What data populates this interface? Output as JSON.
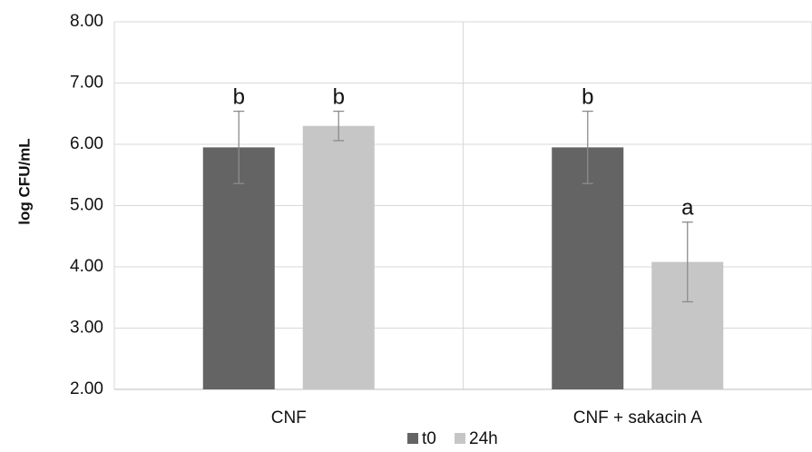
{
  "chart_data": {
    "type": "bar",
    "title": "",
    "xlabel": "",
    "ylabel": "log CFU/mL",
    "ylim": [
      2.0,
      8.0
    ],
    "yticks": [
      "2.00",
      "3.00",
      "4.00",
      "5.00",
      "6.00",
      "7.00",
      "8.00"
    ],
    "categories": [
      "CNF",
      "CNF + sakacin A"
    ],
    "series": [
      {
        "name": "t0",
        "color": "#646464",
        "values": [
          5.95,
          5.95
        ],
        "error": [
          0.59,
          0.59
        ],
        "labels": [
          "b",
          "b"
        ]
      },
      {
        "name": "24h",
        "color": "#c6c6c6",
        "values": [
          6.3,
          4.08
        ],
        "error": [
          0.24,
          0.65
        ],
        "labels": [
          "b",
          "a"
        ]
      }
    ],
    "grid": true,
    "legend_position": "bottom"
  }
}
